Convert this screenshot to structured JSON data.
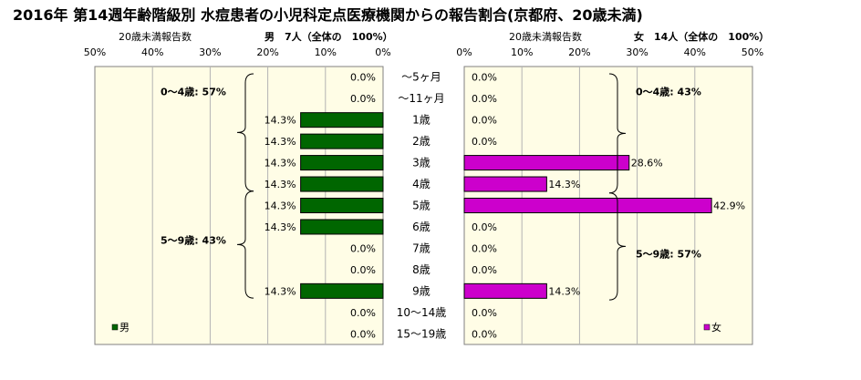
{
  "chart_data": {
    "type": "bar",
    "title": "2016年 第14週年齢階級別 水痘患者の小児科定点医療機関からの報告割合(京都府、20歳未満)",
    "categories": [
      "～5ヶ月",
      "～11ヶ月",
      "1歳",
      "2歳",
      "3歳",
      "4歳",
      "5歳",
      "6歳",
      "7歳",
      "8歳",
      "9歳",
      "10～14歳",
      "15～19歳"
    ],
    "xlim": [
      0,
      50
    ],
    "tick_labels": [
      "0%",
      "10%",
      "20%",
      "30%",
      "40%",
      "50%"
    ],
    "grid": true,
    "male": {
      "panel_label": "20歳未満報告数",
      "header": "男　7人（全体の　100%）",
      "legend": "男",
      "color": "#006600",
      "values": [
        0.0,
        0.0,
        14.3,
        14.3,
        14.3,
        14.3,
        14.3,
        14.3,
        0.0,
        0.0,
        14.3,
        0.0,
        0.0
      ],
      "value_labels": [
        "0.0%",
        "0.0%",
        "14.3%",
        "14.3%",
        "14.3%",
        "14.3%",
        "14.3%",
        "14.3%",
        "0.0%",
        "0.0%",
        "14.3%",
        "0.0%",
        "0.0%"
      ],
      "annotations": [
        "0～4歳: 57%",
        "5～9歳: 43%"
      ]
    },
    "female": {
      "panel_label": "20歳未満報告数",
      "header": "女　14人（全体の　100%）",
      "legend": "女",
      "color": "#cc00cc",
      "values": [
        0.0,
        0.0,
        0.0,
        0.0,
        28.6,
        14.3,
        42.9,
        0.0,
        0.0,
        0.0,
        14.3,
        0.0,
        0.0
      ],
      "value_labels": [
        "0.0%",
        "0.0%",
        "0.0%",
        "0.0%",
        "28.6%",
        "14.3%",
        "42.9%",
        "0.0%",
        "0.0%",
        "0.0%",
        "14.3%",
        "0.0%",
        "0.0%"
      ],
      "annotations": [
        "0～4歳: 43%",
        "5～9歳: 57%"
      ]
    },
    "colors": {
      "plot_bg": "#fffde6",
      "grid": "#b3b3b3"
    }
  }
}
